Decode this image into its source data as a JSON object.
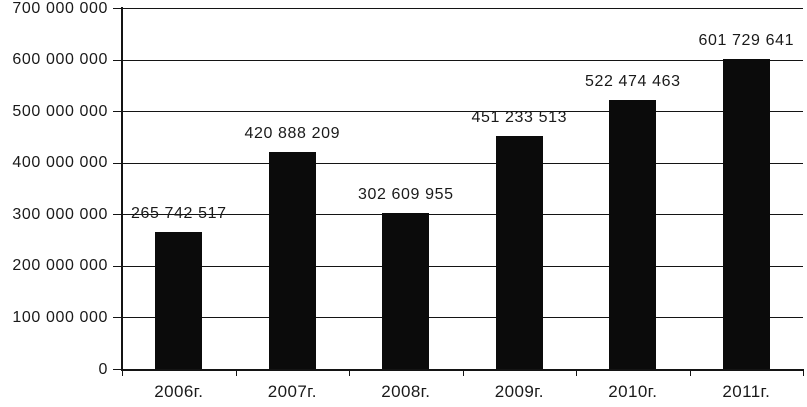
{
  "chart_data": {
    "type": "bar",
    "title": "",
    "xlabel": "",
    "ylabel": "",
    "categories": [
      "2006г.",
      "2007г.",
      "2008г.",
      "2009г.",
      "2010г.",
      "2011г."
    ],
    "values": [
      265742517,
      420888209,
      302609955,
      451233513,
      522474463,
      601729641
    ],
    "value_labels": [
      "265 742 517",
      "420 888 209",
      "302 609 955",
      "451 233 513",
      "522 474 463",
      "601 729 641"
    ],
    "y_tick_labels": [
      "0",
      "100 000 000",
      "200 000 000",
      "300 000 000",
      "400 000 000",
      "500 000 000",
      "600 000 000",
      "700 000 000"
    ],
    "ylim": [
      0,
      700000000
    ],
    "y_step": 100000000,
    "grid": true,
    "legend": false,
    "bar_color": "#0b0b0b",
    "axis_color": "#141414",
    "text_color": "#1a1a1a",
    "background": "#ffffff"
  }
}
